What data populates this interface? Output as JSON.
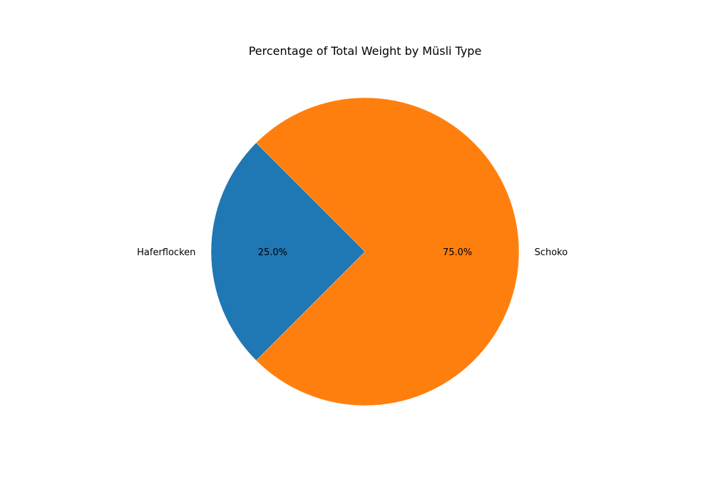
{
  "chart_data": {
    "type": "pie",
    "title": "Percentage of Total Weight by Müsli Type",
    "categories": [
      "Haferflocken",
      "Schoko"
    ],
    "values": [
      25.0,
      75.0
    ],
    "percent_labels": [
      "25.0%",
      "75.0%"
    ],
    "colors": [
      "#1f77b4",
      "#ff7f0e"
    ],
    "start_angle_deg": 135,
    "direction": "counterclockwise",
    "legend": "none"
  }
}
